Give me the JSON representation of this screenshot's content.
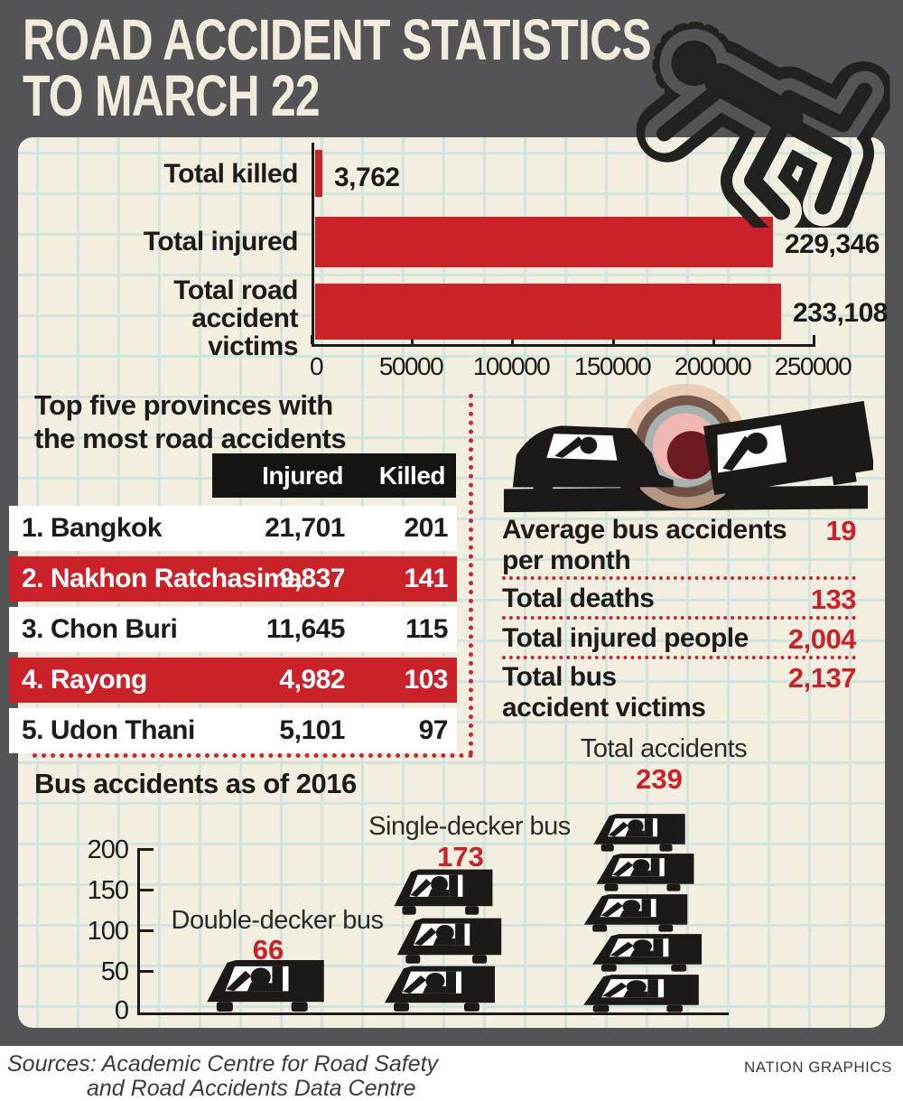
{
  "header": {
    "title_line1": "ROAD ACCIDENT STATISTICS",
    "title_line2": "TO MARCH 22"
  },
  "colors": {
    "red": "#cb2129",
    "cream": "#f3efe0",
    "frame_gray": "#545457",
    "ink": "#1d1c1a",
    "grid_line": "#d3e4df",
    "dotted_red": "#c3292e"
  },
  "chart_data": [
    {
      "type": "bar",
      "orientation": "horizontal",
      "categories": [
        "Total killed",
        "Total injured",
        "Total road accident victims"
      ],
      "values": [
        3762,
        229346,
        233108
      ],
      "value_labels": [
        "3,762",
        "229,346",
        "233,108"
      ],
      "xlim": [
        0,
        250000
      ],
      "x_tick_labels": [
        "0",
        "50000",
        "100000",
        "150000",
        "200000",
        "250000"
      ],
      "bar_color": "#cb2129",
      "grid": true,
      "legend": false
    },
    {
      "type": "bar",
      "subtype": "pictogram",
      "title": "Bus accidents as of 2016",
      "categories": [
        "Double-decker bus",
        "Single-decker bus",
        "Total accidents"
      ],
      "values": [
        66,
        173,
        239
      ],
      "value_labels": [
        "66",
        "173",
        "239"
      ],
      "icon": "bus",
      "icon_counts": [
        1,
        3,
        5
      ],
      "ylim": [
        0,
        200
      ],
      "y_tick_labels": [
        "200",
        "150",
        "100",
        "50",
        "0"
      ],
      "legend": false
    }
  ],
  "provinces": {
    "title_line1": "Top five provinces with",
    "title_line2": "the most road accidents",
    "columns": [
      "Injured",
      "Killed"
    ],
    "rows": [
      {
        "rank": "1.",
        "name": "Bangkok",
        "injured": "21,701",
        "killed": "201",
        "highlighted": false
      },
      {
        "rank": "2.",
        "name": "Nakhon Ratchasima",
        "injured": "9,837",
        "killed": "141",
        "highlighted": true
      },
      {
        "rank": "3.",
        "name": "Chon Buri",
        "injured": "11,645",
        "killed": "115",
        "highlighted": false
      },
      {
        "rank": "4.",
        "name": "Rayong",
        "injured": "4,982",
        "killed": "103",
        "highlighted": true
      },
      {
        "rank": "5.",
        "name": "Udon Thani",
        "injured": "5,101",
        "killed": "97",
        "highlighted": false
      }
    ]
  },
  "bus_stats": {
    "items": [
      {
        "label_line1": "Average bus accidents",
        "label_line2": "per month",
        "value": "19"
      },
      {
        "label_line1": "Total deaths",
        "label_line2": "",
        "value": "133"
      },
      {
        "label_line1": "Total injured people",
        "label_line2": "",
        "value": "2,004"
      },
      {
        "label_line1": "Total bus",
        "label_line2": "accident victims",
        "value": "2,137"
      }
    ]
  },
  "footer": {
    "sources_line1": "Sources: Academic Centre for Road Safety",
    "sources_line2": "and Road Accidents Data Centre",
    "credit": "NATION GRAPHICS"
  }
}
